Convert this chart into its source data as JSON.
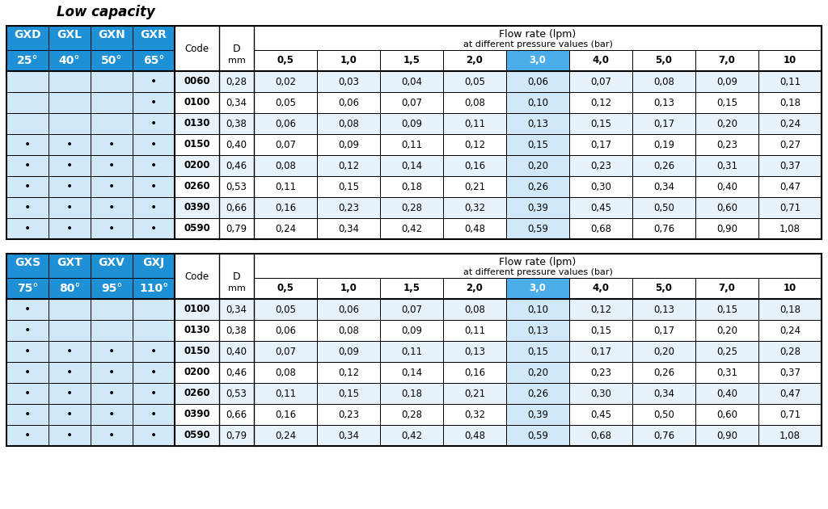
{
  "title": "Low capacity",
  "table1": {
    "nozzle_types": [
      "GXD",
      "GXL",
      "GXN",
      "GXR"
    ],
    "angles": [
      "25°",
      "40°",
      "50°",
      "65°"
    ],
    "flow_rate_header1": "Flow rate (lpm)",
    "flow_rate_header2": "at different pressure values (bar)",
    "d_label": "D",
    "code_label": "Code",
    "mm_label": "mm",
    "pressures": [
      "0,5",
      "1,0",
      "1,5",
      "2,0",
      "3,0",
      "4,0",
      "5,0",
      "7,0",
      "10"
    ],
    "rows": [
      {
        "code": "0060",
        "d": "0,28",
        "dots": [
          false,
          false,
          false,
          true
        ],
        "flows": [
          "0,02",
          "0,03",
          "0,04",
          "0,05",
          "0,06",
          "0,07",
          "0,08",
          "0,09",
          "0,11"
        ]
      },
      {
        "code": "0100",
        "d": "0,34",
        "dots": [
          false,
          false,
          false,
          true
        ],
        "flows": [
          "0,05",
          "0,06",
          "0,07",
          "0,08",
          "0,10",
          "0,12",
          "0,13",
          "0,15",
          "0,18"
        ]
      },
      {
        "code": "0130",
        "d": "0,38",
        "dots": [
          false,
          false,
          false,
          true
        ],
        "flows": [
          "0,06",
          "0,08",
          "0,09",
          "0,11",
          "0,13",
          "0,15",
          "0,17",
          "0,20",
          "0,24"
        ]
      },
      {
        "code": "0150",
        "d": "0,40",
        "dots": [
          true,
          true,
          true,
          true
        ],
        "flows": [
          "0,07",
          "0,09",
          "0,11",
          "0,12",
          "0,15",
          "0,17",
          "0,19",
          "0,23",
          "0,27"
        ]
      },
      {
        "code": "0200",
        "d": "0,46",
        "dots": [
          true,
          true,
          true,
          true
        ],
        "flows": [
          "0,08",
          "0,12",
          "0,14",
          "0,16",
          "0,20",
          "0,23",
          "0,26",
          "0,31",
          "0,37"
        ]
      },
      {
        "code": "0260",
        "d": "0,53",
        "dots": [
          true,
          true,
          true,
          true
        ],
        "flows": [
          "0,11",
          "0,15",
          "0,18",
          "0,21",
          "0,26",
          "0,30",
          "0,34",
          "0,40",
          "0,47"
        ]
      },
      {
        "code": "0390",
        "d": "0,66",
        "dots": [
          true,
          true,
          true,
          true
        ],
        "flows": [
          "0,16",
          "0,23",
          "0,28",
          "0,32",
          "0,39",
          "0,45",
          "0,50",
          "0,60",
          "0,71"
        ]
      },
      {
        "code": "0590",
        "d": "0,79",
        "dots": [
          true,
          true,
          true,
          true
        ],
        "flows": [
          "0,24",
          "0,34",
          "0,42",
          "0,48",
          "0,59",
          "0,68",
          "0,76",
          "0,90",
          "1,08"
        ]
      }
    ]
  },
  "table2": {
    "nozzle_types": [
      "GXS",
      "GXT",
      "GXV",
      "GXJ"
    ],
    "angles": [
      "75°",
      "80°",
      "95°",
      "110°"
    ],
    "flow_rate_header1": "Flow rate (lpm)",
    "flow_rate_header2": "at different pressure values (bar)",
    "d_label": "D",
    "code_label": "Code",
    "mm_label": "mm",
    "pressures": [
      "0,5",
      "1,0",
      "1,5",
      "2,0",
      "3,0",
      "4,0",
      "5,0",
      "7,0",
      "10"
    ],
    "rows": [
      {
        "code": "0100",
        "d": "0,34",
        "dots": [
          true,
          false,
          false,
          false
        ],
        "flows": [
          "0,05",
          "0,06",
          "0,07",
          "0,08",
          "0,10",
          "0,12",
          "0,13",
          "0,15",
          "0,18"
        ]
      },
      {
        "code": "0130",
        "d": "0,38",
        "dots": [
          true,
          false,
          false,
          false
        ],
        "flows": [
          "0,06",
          "0,08",
          "0,09",
          "0,11",
          "0,13",
          "0,15",
          "0,17",
          "0,20",
          "0,24"
        ]
      },
      {
        "code": "0150",
        "d": "0,40",
        "dots": [
          true,
          true,
          true,
          true
        ],
        "flows": [
          "0,07",
          "0,09",
          "0,11",
          "0,13",
          "0,15",
          "0,17",
          "0,20",
          "0,25",
          "0,28"
        ]
      },
      {
        "code": "0200",
        "d": "0,46",
        "dots": [
          true,
          true,
          true,
          true
        ],
        "flows": [
          "0,08",
          "0,12",
          "0,14",
          "0,16",
          "0,20",
          "0,23",
          "0,26",
          "0,31",
          "0,37"
        ]
      },
      {
        "code": "0260",
        "d": "0,53",
        "dots": [
          true,
          true,
          true,
          true
        ],
        "flows": [
          "0,11",
          "0,15",
          "0,18",
          "0,21",
          "0,26",
          "0,30",
          "0,34",
          "0,40",
          "0,47"
        ]
      },
      {
        "code": "0390",
        "d": "0,66",
        "dots": [
          true,
          true,
          true,
          true
        ],
        "flows": [
          "0,16",
          "0,23",
          "0,28",
          "0,32",
          "0,39",
          "0,45",
          "0,50",
          "0,60",
          "0,71"
        ]
      },
      {
        "code": "0590",
        "d": "0,79",
        "dots": [
          true,
          true,
          true,
          true
        ],
        "flows": [
          "0,24",
          "0,34",
          "0,42",
          "0,48",
          "0,59",
          "0,68",
          "0,76",
          "0,90",
          "1,08"
        ]
      }
    ]
  },
  "colors": {
    "blue_header": "#1e90d5",
    "light_blue_cell": "#d0e8f8",
    "highlight_col": "#4baee8",
    "white": "#ffffff",
    "black": "#000000",
    "border": "#000000",
    "title_color": "#000000",
    "row_even": "#e8f2fb",
    "row_odd": "#ffffff"
  }
}
